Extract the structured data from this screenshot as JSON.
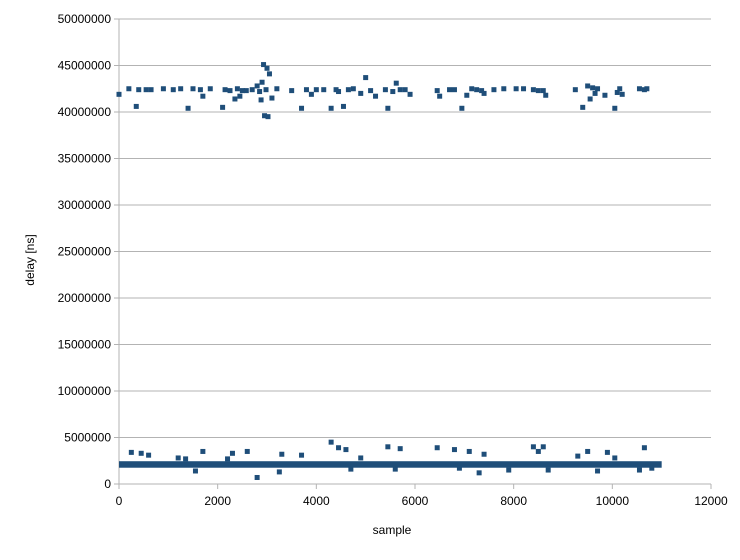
{
  "chart_data": {
    "type": "scatter",
    "xlabel": "sample",
    "ylabel": "delay [ns]",
    "xlim": [
      0,
      12000
    ],
    "ylim": [
      0,
      50000000
    ],
    "x_ticks": [
      0,
      2000,
      4000,
      6000,
      8000,
      10000,
      12000
    ],
    "y_ticks": [
      0,
      5000000,
      10000000,
      15000000,
      20000000,
      25000000,
      30000000,
      35000000,
      40000000,
      45000000,
      50000000
    ],
    "grid": true,
    "legend": "none",
    "series": [
      {
        "marker_color": "#1f4e79",
        "points": [
          [
            0,
            41900000
          ],
          [
            200,
            42500000
          ],
          [
            350,
            40600000
          ],
          [
            400,
            42400000
          ],
          [
            550,
            42400000
          ],
          [
            650,
            42400000
          ],
          [
            900,
            42500000
          ],
          [
            1100,
            42400000
          ],
          [
            1250,
            42500000
          ],
          [
            1400,
            40400000
          ],
          [
            1500,
            42500000
          ],
          [
            1650,
            42400000
          ],
          [
            1700,
            41700000
          ],
          [
            1850,
            42500000
          ],
          [
            2100,
            40500000
          ],
          [
            2150,
            42400000
          ],
          [
            2250,
            42300000
          ],
          [
            2350,
            41400000
          ],
          [
            2400,
            42500000
          ],
          [
            2450,
            41700000
          ],
          [
            2500,
            42300000
          ],
          [
            2580,
            42300000
          ],
          [
            2700,
            42400000
          ],
          [
            2800,
            42800000
          ],
          [
            2850,
            42200000
          ],
          [
            2880,
            41300000
          ],
          [
            2900,
            43200000
          ],
          [
            2930,
            45100000
          ],
          [
            2950,
            39600000
          ],
          [
            2980,
            42400000
          ],
          [
            3000,
            44700000
          ],
          [
            3020,
            39500000
          ],
          [
            3050,
            44100000
          ],
          [
            3100,
            41500000
          ],
          [
            3200,
            42500000
          ],
          [
            3500,
            42300000
          ],
          [
            3700,
            40400000
          ],
          [
            3800,
            42400000
          ],
          [
            3900,
            41900000
          ],
          [
            4000,
            42400000
          ],
          [
            4150,
            42400000
          ],
          [
            4300,
            40400000
          ],
          [
            4400,
            42400000
          ],
          [
            4450,
            42200000
          ],
          [
            4550,
            40600000
          ],
          [
            4650,
            42400000
          ],
          [
            4750,
            42500000
          ],
          [
            4900,
            42000000
          ],
          [
            5000,
            43700000
          ],
          [
            5100,
            42300000
          ],
          [
            5200,
            41700000
          ],
          [
            5400,
            42400000
          ],
          [
            5450,
            40400000
          ],
          [
            5550,
            42200000
          ],
          [
            5620,
            43100000
          ],
          [
            5700,
            42400000
          ],
          [
            5800,
            42400000
          ],
          [
            5900,
            41900000
          ],
          [
            6450,
            42300000
          ],
          [
            6500,
            41700000
          ],
          [
            6700,
            42400000
          ],
          [
            6800,
            42400000
          ],
          [
            6950,
            40400000
          ],
          [
            7050,
            41800000
          ],
          [
            7150,
            42500000
          ],
          [
            7250,
            42400000
          ],
          [
            7350,
            42300000
          ],
          [
            7400,
            42000000
          ],
          [
            7600,
            42400000
          ],
          [
            7800,
            42500000
          ],
          [
            8050,
            42500000
          ],
          [
            8200,
            42500000
          ],
          [
            8400,
            42400000
          ],
          [
            8500,
            42300000
          ],
          [
            8600,
            42300000
          ],
          [
            8650,
            41800000
          ],
          [
            9250,
            42400000
          ],
          [
            9400,
            40500000
          ],
          [
            9500,
            42800000
          ],
          [
            9550,
            41400000
          ],
          [
            9600,
            42600000
          ],
          [
            9650,
            42000000
          ],
          [
            9700,
            42500000
          ],
          [
            9850,
            41800000
          ],
          [
            10050,
            40400000
          ],
          [
            10100,
            42100000
          ],
          [
            10150,
            42500000
          ],
          [
            10200,
            41900000
          ],
          [
            10550,
            42500000
          ],
          [
            10650,
            42400000
          ],
          [
            10700,
            42500000
          ],
          [
            250,
            3400000
          ],
          [
            450,
            3300000
          ],
          [
            600,
            3100000
          ],
          [
            1200,
            2800000
          ],
          [
            1350,
            2700000
          ],
          [
            1550,
            1400000
          ],
          [
            1700,
            3500000
          ],
          [
            2200,
            2700000
          ],
          [
            2300,
            3300000
          ],
          [
            2600,
            3500000
          ],
          [
            2800,
            700000
          ],
          [
            3250,
            1300000
          ],
          [
            3300,
            3200000
          ],
          [
            3700,
            3100000
          ],
          [
            4300,
            4500000
          ],
          [
            4450,
            3900000
          ],
          [
            4600,
            3700000
          ],
          [
            4700,
            1600000
          ],
          [
            4900,
            2800000
          ],
          [
            5450,
            4000000
          ],
          [
            5600,
            1600000
          ],
          [
            5700,
            3800000
          ],
          [
            6450,
            3900000
          ],
          [
            6800,
            3700000
          ],
          [
            6900,
            1700000
          ],
          [
            7100,
            3500000
          ],
          [
            7300,
            1200000
          ],
          [
            7400,
            3200000
          ],
          [
            7900,
            1500000
          ],
          [
            8400,
            4000000
          ],
          [
            8500,
            3500000
          ],
          [
            8600,
            4000000
          ],
          [
            8700,
            1500000
          ],
          [
            9300,
            3000000
          ],
          [
            9500,
            3500000
          ],
          [
            9700,
            1400000
          ],
          [
            9900,
            3400000
          ],
          [
            10050,
            2800000
          ],
          [
            10550,
            1500000
          ],
          [
            10650,
            3900000
          ],
          [
            10800,
            1700000
          ]
        ]
      }
    ],
    "baseline_band": {
      "x_start": 0,
      "x_end": 11000,
      "center": 2100000,
      "spread": 350000
    }
  }
}
